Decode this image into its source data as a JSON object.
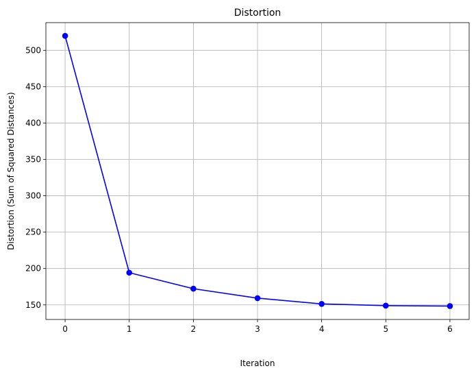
{
  "chart_data": {
    "type": "line",
    "title": "Distortion",
    "xlabel": "Iteration",
    "ylabel": "Distortion (Sum of Squared Distances)",
    "x": [
      0,
      1,
      2,
      3,
      4,
      5,
      6
    ],
    "series": [
      {
        "values": [
          519.8,
          194.3,
          172.3,
          159.3,
          151.4,
          149.0,
          148.4
        ],
        "color": "#0000ff",
        "marker": "circle"
      }
    ],
    "xticks": [
      "0",
      "1",
      "2",
      "3",
      "4",
      "5",
      "6"
    ],
    "yticks": [
      "150",
      "200",
      "250",
      "300",
      "350",
      "400",
      "450",
      "500"
    ],
    "xlim": [
      -0.3,
      6.3
    ],
    "ylim": [
      130,
      538
    ],
    "grid": true
  }
}
